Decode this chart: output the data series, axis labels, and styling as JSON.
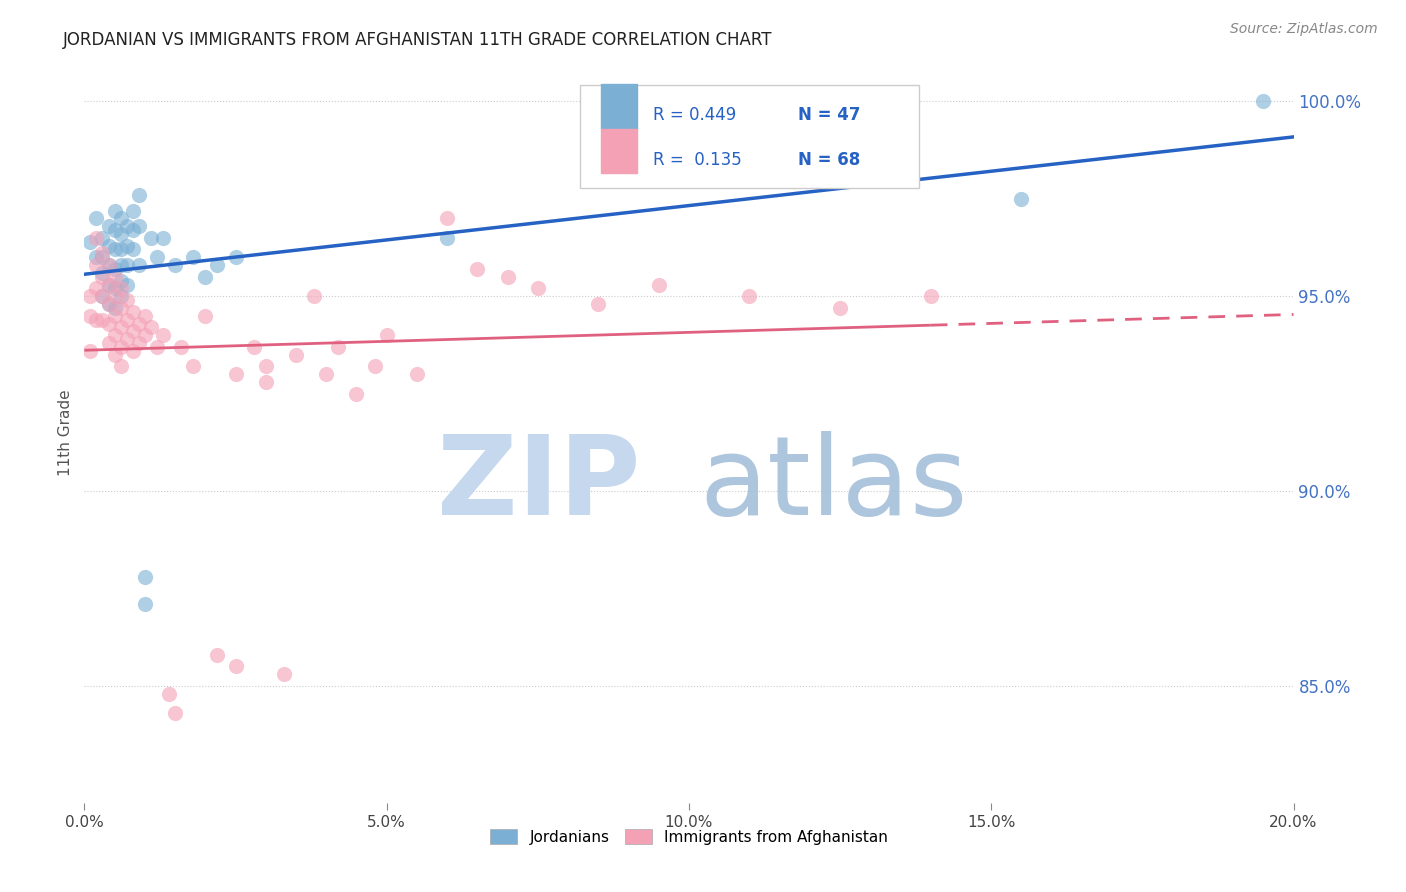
{
  "title": "JORDANIAN VS IMMIGRANTS FROM AFGHANISTAN 11TH GRADE CORRELATION CHART",
  "source": "Source: ZipAtlas.com",
  "ylabel": "11th Grade",
  "ytick_labels": [
    "100.0%",
    "95.0%",
    "90.0%",
    "85.0%"
  ],
  "ytick_positions": [
    1.0,
    0.95,
    0.9,
    0.85
  ],
  "blue_color": "#7BAFD4",
  "pink_color": "#F4A0B5",
  "line_blue": "#2662C4",
  "line_pink": "#E06080",
  "watermark_zip_color": "#C5D8EE",
  "watermark_atlas_color": "#A0BCD8",
  "jordanians_x": [
    0.001,
    0.002,
    0.002,
    0.003,
    0.003,
    0.003,
    0.003,
    0.004,
    0.004,
    0.004,
    0.004,
    0.004,
    0.005,
    0.005,
    0.005,
    0.005,
    0.005,
    0.005,
    0.006,
    0.006,
    0.006,
    0.006,
    0.006,
    0.006,
    0.007,
    0.007,
    0.007,
    0.007,
    0.008,
    0.008,
    0.008,
    0.009,
    0.009,
    0.009,
    0.01,
    0.01,
    0.011,
    0.012,
    0.013,
    0.015,
    0.018,
    0.02,
    0.022,
    0.025,
    0.06,
    0.155,
    0.195
  ],
  "jordanians_y": [
    0.964,
    0.97,
    0.96,
    0.965,
    0.96,
    0.956,
    0.95,
    0.968,
    0.963,
    0.958,
    0.953,
    0.948,
    0.972,
    0.967,
    0.962,
    0.957,
    0.952,
    0.947,
    0.97,
    0.966,
    0.962,
    0.958,
    0.954,
    0.95,
    0.968,
    0.963,
    0.958,
    0.953,
    0.972,
    0.967,
    0.962,
    0.976,
    0.968,
    0.958,
    0.878,
    0.871,
    0.965,
    0.96,
    0.965,
    0.958,
    0.96,
    0.955,
    0.958,
    0.96,
    0.965,
    0.975,
    1.0
  ],
  "afghanistan_x": [
    0.001,
    0.001,
    0.001,
    0.002,
    0.002,
    0.002,
    0.002,
    0.003,
    0.003,
    0.003,
    0.003,
    0.004,
    0.004,
    0.004,
    0.004,
    0.004,
    0.005,
    0.005,
    0.005,
    0.005,
    0.005,
    0.006,
    0.006,
    0.006,
    0.006,
    0.006,
    0.007,
    0.007,
    0.007,
    0.008,
    0.008,
    0.008,
    0.009,
    0.009,
    0.01,
    0.01,
    0.011,
    0.012,
    0.013,
    0.014,
    0.015,
    0.016,
    0.018,
    0.02,
    0.022,
    0.025,
    0.028,
    0.03,
    0.033,
    0.038,
    0.042,
    0.048,
    0.055,
    0.065,
    0.075,
    0.085,
    0.095,
    0.11,
    0.125,
    0.14,
    0.025,
    0.03,
    0.035,
    0.04,
    0.045,
    0.05,
    0.06,
    0.07
  ],
  "afghanistan_y": [
    0.95,
    0.945,
    0.936,
    0.965,
    0.958,
    0.952,
    0.944,
    0.961,
    0.955,
    0.95,
    0.944,
    0.958,
    0.953,
    0.948,
    0.943,
    0.938,
    0.955,
    0.95,
    0.945,
    0.94,
    0.935,
    0.952,
    0.947,
    0.942,
    0.937,
    0.932,
    0.949,
    0.944,
    0.939,
    0.946,
    0.941,
    0.936,
    0.943,
    0.938,
    0.945,
    0.94,
    0.942,
    0.937,
    0.94,
    0.848,
    0.843,
    0.937,
    0.932,
    0.945,
    0.858,
    0.855,
    0.937,
    0.932,
    0.853,
    0.95,
    0.937,
    0.932,
    0.93,
    0.957,
    0.952,
    0.948,
    0.953,
    0.95,
    0.947,
    0.95,
    0.93,
    0.928,
    0.935,
    0.93,
    0.925,
    0.94,
    0.97,
    0.955
  ],
  "xmin": 0.0,
  "xmax": 0.2,
  "ymin": 0.82,
  "ymax": 1.01,
  "figwidth": 14.06,
  "figheight": 8.92,
  "xtick_positions": [
    0.0,
    0.05,
    0.1,
    0.15,
    0.2
  ],
  "xtick_labels": [
    "0.0%",
    "5.0%",
    "10.0%",
    "15.0%",
    "20.0%"
  ]
}
